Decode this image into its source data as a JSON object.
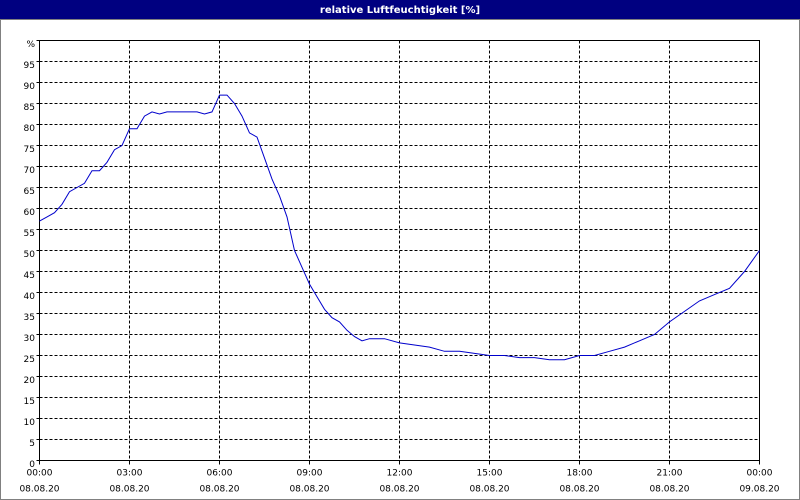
{
  "chart_data": {
    "type": "line",
    "title": "relative Luftfeuchtigkeit [%]",
    "x": [
      0,
      0.25,
      0.5,
      0.75,
      1,
      1.25,
      1.5,
      1.75,
      2,
      2.25,
      2.5,
      2.75,
      3,
      3.25,
      3.5,
      3.75,
      4,
      4.25,
      4.5,
      4.75,
      5,
      5.25,
      5.5,
      5.75,
      6,
      6.25,
      6.5,
      6.75,
      7,
      7.25,
      7.5,
      7.75,
      8,
      8.25,
      8.5,
      8.75,
      9,
      9.25,
      9.5,
      9.75,
      10,
      10.25,
      10.5,
      10.75,
      11,
      11.5,
      12,
      12.5,
      13,
      13.5,
      14,
      14.5,
      15,
      15.5,
      16,
      16.5,
      17,
      17.5,
      18,
      18.5,
      19,
      19.5,
      20,
      20.5,
      21,
      21.5,
      22,
      22.5,
      23,
      23.5,
      24
    ],
    "series": [
      {
        "name": "relative Luftfeuchtigkeit",
        "color": "#0000cc",
        "values": [
          57,
          58,
          59,
          61,
          64,
          65,
          66,
          69,
          69,
          71,
          74,
          75,
          79,
          79,
          82,
          83,
          82.5,
          83,
          83,
          83,
          83,
          83,
          82.5,
          83,
          87,
          87,
          85,
          82,
          78,
          77,
          72,
          67,
          63,
          58,
          50,
          46,
          42,
          39,
          36,
          34,
          33,
          31,
          29.5,
          28.5,
          29,
          29,
          28,
          27.5,
          27,
          26,
          26,
          25.5,
          25,
          25,
          24.5,
          24.5,
          24,
          24,
          25,
          25,
          26,
          27,
          28.5,
          30,
          33,
          35.5,
          38,
          39.5,
          41,
          45,
          50
        ]
      }
    ],
    "xlim": [
      0,
      24
    ],
    "xticks": [
      {
        "value": 0,
        "label": "00:00"
      },
      {
        "value": 3,
        "label": "03:00"
      },
      {
        "value": 6,
        "label": "06:00"
      },
      {
        "value": 9,
        "label": "09:00"
      },
      {
        "value": 12,
        "label": "12:00"
      },
      {
        "value": 15,
        "label": "15:00"
      },
      {
        "value": 18,
        "label": "18:00"
      },
      {
        "value": 21,
        "label": "21:00"
      },
      {
        "value": 24,
        "label": "00:00"
      }
    ],
    "xtick_dates": [
      "08.08.20",
      "08.08.20",
      "08.08.20",
      "08.08.20",
      "08.08.20",
      "08.08.20",
      "08.08.20",
      "08.08.20",
      "09.08.20"
    ],
    "ylim": [
      0,
      100
    ],
    "yticks": [
      0,
      5,
      10,
      15,
      20,
      25,
      30,
      35,
      40,
      45,
      50,
      55,
      60,
      65,
      70,
      75,
      80,
      85,
      90,
      95,
      {
        "value": 100,
        "label": "%"
      }
    ],
    "grid": true
  }
}
